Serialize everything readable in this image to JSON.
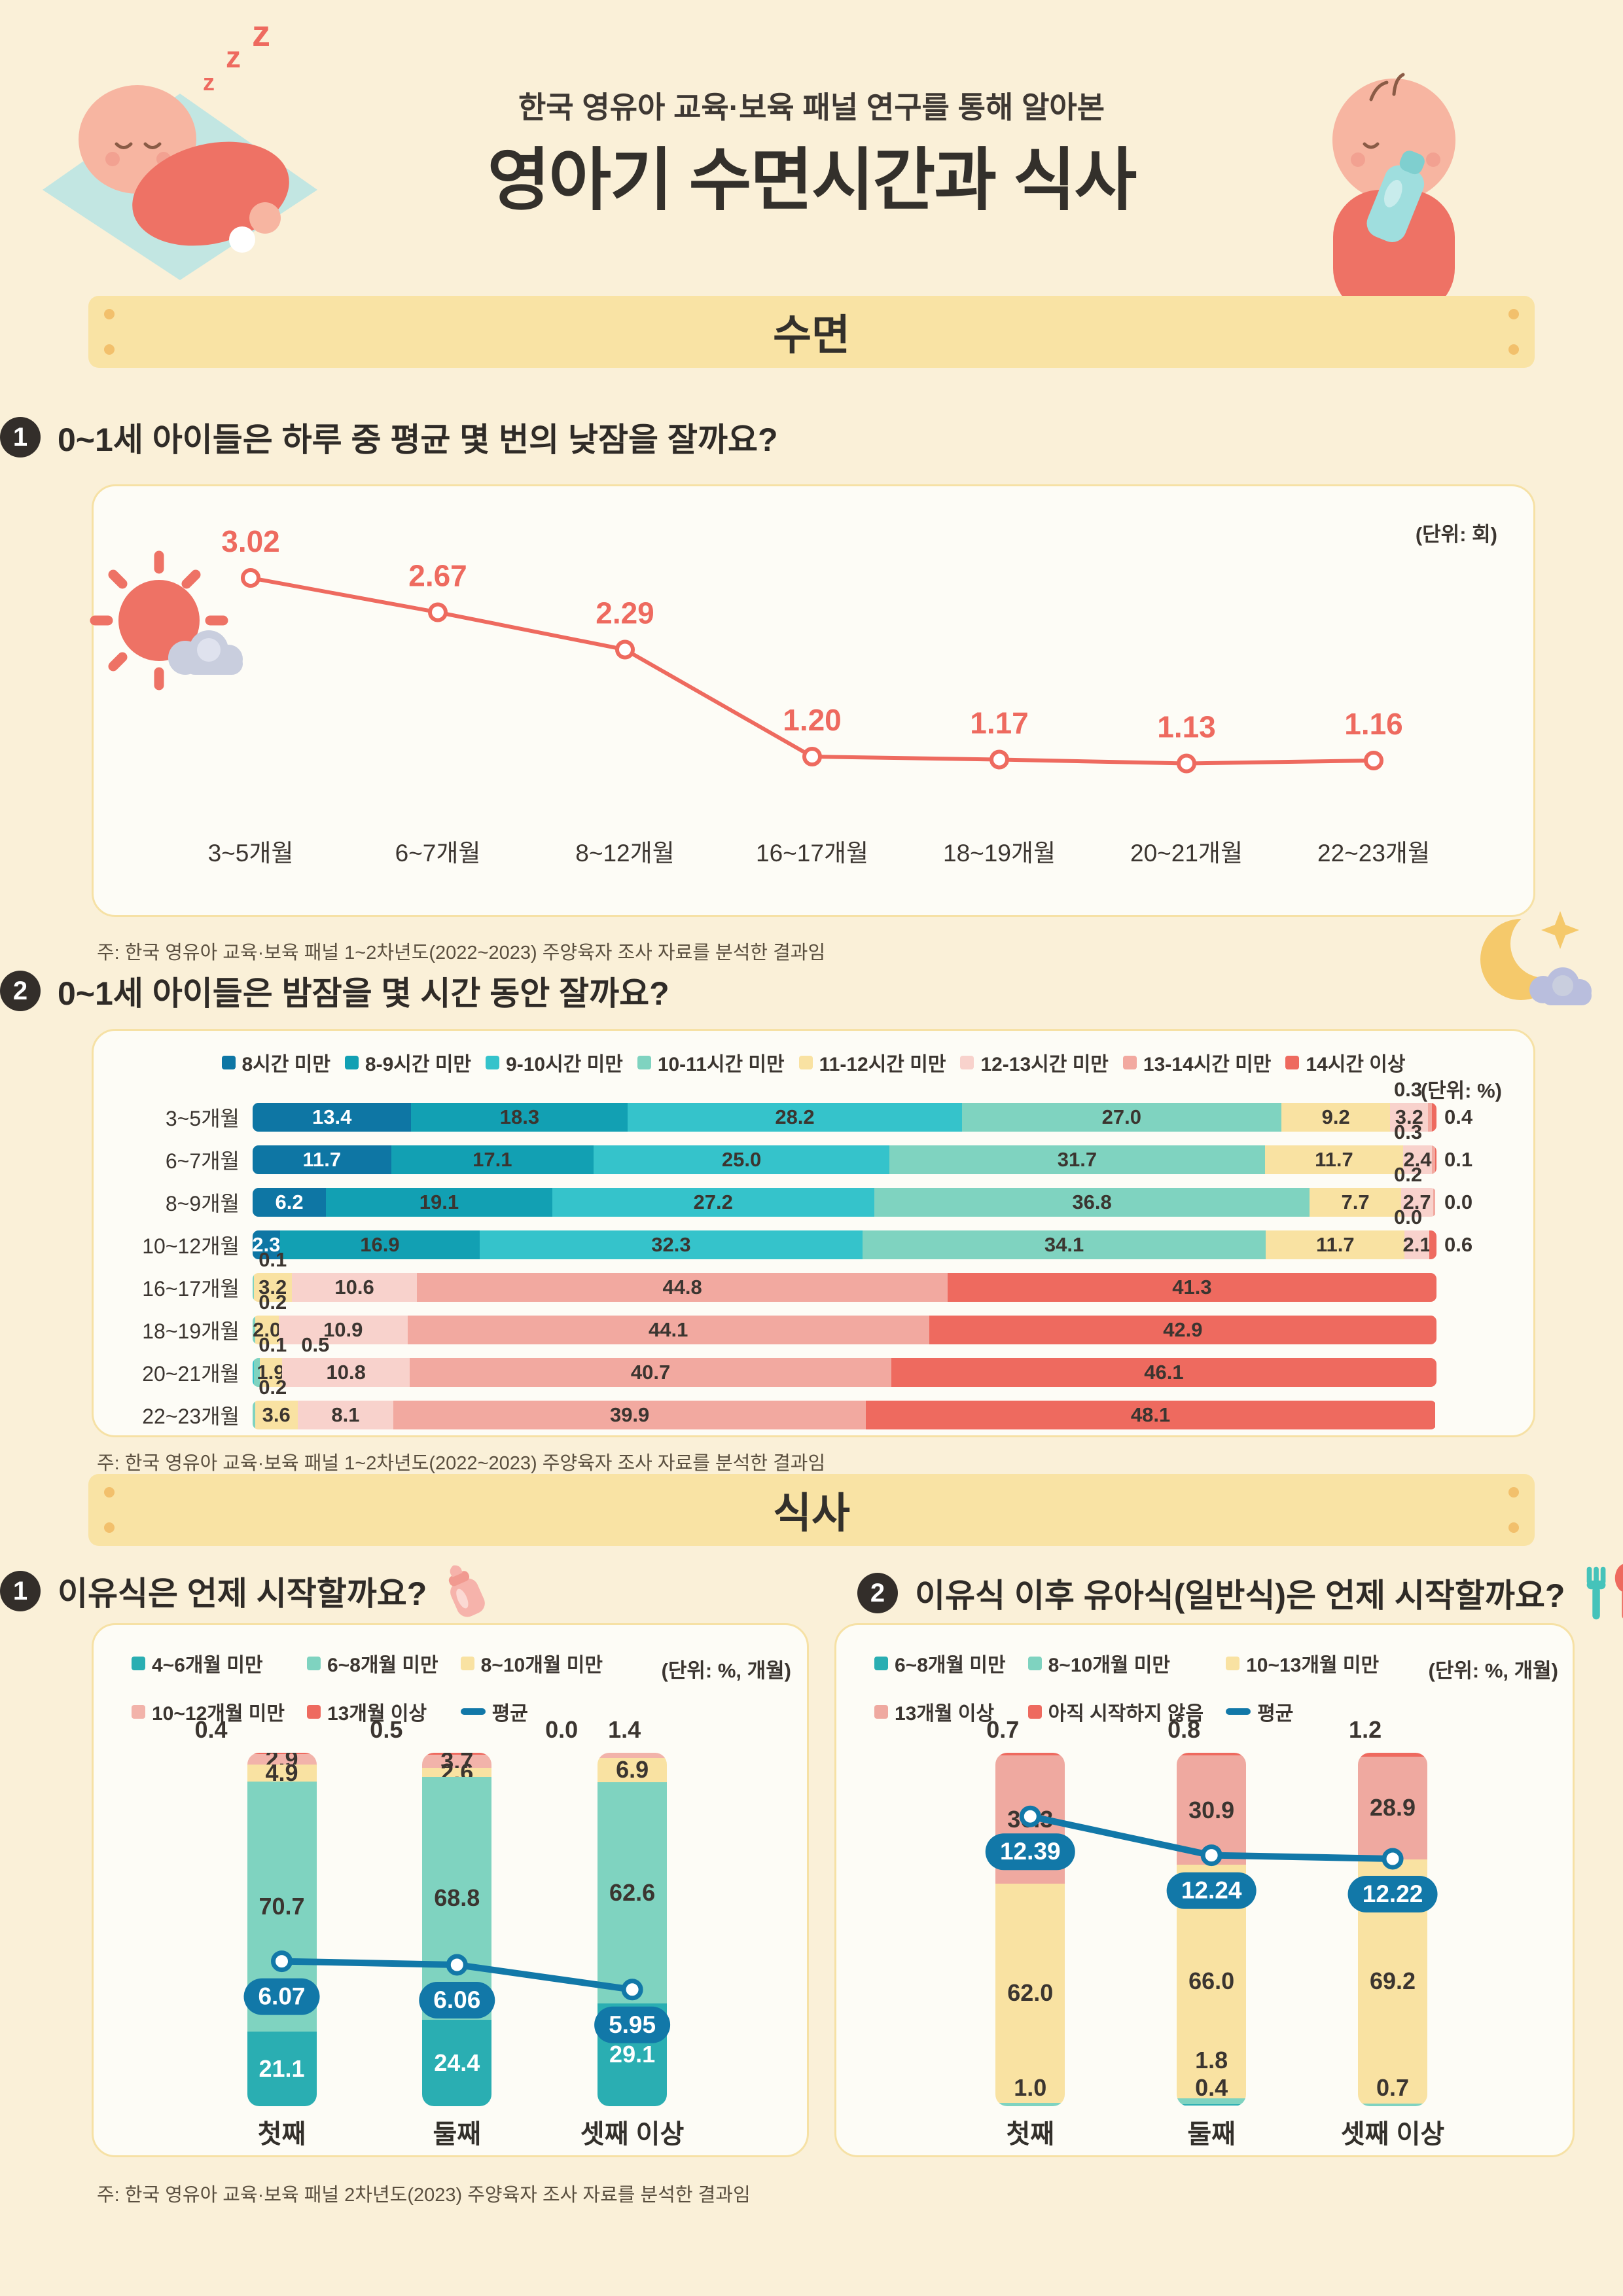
{
  "page": {
    "subtitle": "한국 영유아 교육·보육 패널 연구를 통해 알아본",
    "title": "영아기 수면시간과 식사",
    "section_sleep": "수면",
    "section_meal": "식사",
    "note_sleep": "주: 한국 영유아 교육·보육 패널 1~2차년도(2022~2023) 주양육자 조사 자료를 분석한 결과임",
    "note_meal": "주: 한국 영유아 교육·보육 패널 2차년도(2023) 주양육자 조사 자료를 분석한 결과임"
  },
  "colors": {
    "background": "#faf0d8",
    "band": "#f9e3a4",
    "band_dot": "#f2c06c",
    "panel_bg": "#fdfcf6",
    "panel_border": "#f6e1a5",
    "text_dark": "#33302b",
    "accent_coral": "#ee6a5f",
    "average_blue": "#1278a8"
  },
  "chart_data": [
    {
      "id": "nap-count",
      "type": "line",
      "question_no": "1",
      "title": "0~1세 아이들은 하루 중 평균 몇 번의 낮잠을 잘까요?",
      "unit": "(단위: 회)",
      "categories": [
        "3~5개월",
        "6~7개월",
        "8~12개월",
        "16~17개월",
        "18~19개월",
        "20~21개월",
        "22~23개월"
      ],
      "values": [
        3.02,
        2.67,
        2.29,
        1.2,
        1.17,
        1.13,
        1.16
      ],
      "ylim": [
        1.0,
        3.2
      ],
      "line_color": "#ee6a5f",
      "grid": false
    },
    {
      "id": "night-sleep-hours",
      "type": "bar",
      "subtype": "horizontal-stacked-100pct",
      "question_no": "2",
      "title": "0~1세 아이들은 밤잠을 몇 시간 동안 잘까요?",
      "unit": "(단위: %)",
      "legend": [
        "8시간 미만",
        "8-9시간 미만",
        "9-10시간 미만",
        "10-11시간 미만",
        "11-12시간 미만",
        "12-13시간 미만",
        "13-14시간 미만",
        "14시간 이상"
      ],
      "palette": [
        "#0e76a4",
        "#12a0b3",
        "#35c3cb",
        "#7fd3c0",
        "#f9e2a2",
        "#f8d2cc",
        "#f2a9a0",
        "#ee6a5f"
      ],
      "rows": [
        {
          "label": "3~5개월",
          "values": [
            13.4,
            18.3,
            28.2,
            27.0,
            9.2,
            3.2,
            0.3,
            0.4
          ],
          "above_idx": [
            6
          ],
          "right_idx": 7
        },
        {
          "label": "6~7개월",
          "values": [
            11.7,
            17.1,
            25.0,
            31.7,
            11.7,
            2.4,
            0.3,
            0.1
          ],
          "above_idx": [
            6
          ],
          "right_idx": 7
        },
        {
          "label": "8~9개월",
          "values": [
            6.2,
            19.1,
            27.2,
            36.8,
            7.7,
            2.7,
            0.2,
            0.0
          ],
          "above_idx": [
            6
          ],
          "right_idx": 7
        },
        {
          "label": "10~12개월",
          "values": [
            2.3,
            16.9,
            32.3,
            34.1,
            11.7,
            2.1,
            0.0,
            0.6
          ],
          "above_idx": [
            6
          ],
          "right_idx": 7
        },
        {
          "label": "16~17개월",
          "values": [
            0,
            0,
            0,
            0.1,
            3.2,
            10.6,
            44.8,
            41.3
          ],
          "above_idx": [
            3
          ],
          "right_idx": null
        },
        {
          "label": "18~19개월",
          "values": [
            0,
            0,
            0,
            0.2,
            2.0,
            10.9,
            44.1,
            42.9
          ],
          "above_idx": [
            3
          ],
          "right_idx": null
        },
        {
          "label": "20~21개월",
          "values": [
            0,
            0,
            0.1,
            0.5,
            1.9,
            10.8,
            40.7,
            46.1
          ],
          "above_idx": [
            2,
            3
          ],
          "right_idx": null
        },
        {
          "label": "22~23개월",
          "values": [
            0,
            0,
            0,
            0.2,
            3.6,
            8.1,
            39.9,
            48.1
          ],
          "above_idx": [
            3
          ],
          "right_idx": null
        }
      ]
    },
    {
      "id": "weaning-food-start",
      "type": "bar",
      "subtype": "vertical-stacked-100pct-with-average-line",
      "question_no": "1",
      "title": "이유식은 언제 시작할까요?",
      "unit": "(단위: %, 개월)",
      "legend": [
        "4~6개월 미만",
        "6~8개월 미만",
        "8~10개월 미만",
        "10~12개월 미만",
        "13개월 이상",
        "평균"
      ],
      "palette": [
        "#2aaeb2",
        "#7fd3c0",
        "#f9e2a2",
        "#f2b3aa",
        "#ee6a5f"
      ],
      "average_color": "#1278a8",
      "columns": [
        {
          "label": "첫째",
          "average": 6.07,
          "avg_y_pct": 59,
          "segments": [
            {
              "value": 0.4,
              "color": 4,
              "label": "out"
            },
            {
              "value": 2.9,
              "color": 3,
              "label": "in"
            },
            {
              "value": 4.9,
              "color": 2,
              "label": "in"
            },
            {
              "value": 70.7,
              "color": 1,
              "label": "in"
            },
            {
              "value": 21.1,
              "color": 0,
              "label": "in-white"
            }
          ]
        },
        {
          "label": "둘째",
          "average": 6.06,
          "avg_y_pct": 60,
          "segments": [
            {
              "value": 0.5,
              "color": 4,
              "label": "out"
            },
            {
              "value": 3.7,
              "color": 3,
              "label": "in"
            },
            {
              "value": 2.6,
              "color": 2,
              "label": "in"
            },
            {
              "value": 68.8,
              "color": 1,
              "label": "in"
            },
            {
              "value": 24.4,
              "color": 0,
              "label": "in-white"
            }
          ]
        },
        {
          "label": "셋째 이상",
          "average": 5.95,
          "avg_y_pct": 67,
          "segments": [
            {
              "value": 0.0,
              "color": 4,
              "label": "out"
            },
            {
              "value": 1.4,
              "color": 3,
              "label": "out"
            },
            {
              "value": 6.9,
              "color": 2,
              "label": "in"
            },
            {
              "value": 62.6,
              "color": 1,
              "label": "in"
            },
            {
              "value": 29.1,
              "color": 0,
              "label": "in-white"
            }
          ]
        }
      ]
    },
    {
      "id": "solid-food-start",
      "type": "bar",
      "subtype": "vertical-stacked-100pct-with-average-line",
      "question_no": "2",
      "title": "이유식 이후 유아식(일반식)은 언제 시작할까요?",
      "unit": "(단위: %, 개월)",
      "legend": [
        "6~8개월 미만",
        "8~10개월 미만",
        "10~13개월 미만",
        "13개월 이상",
        "아직 시작하지 않음",
        "평균"
      ],
      "palette": [
        "#2aaeb2",
        "#7fd3c0",
        "#f9e2a2",
        "#efa9a0",
        "#ee6a5f"
      ],
      "average_color": "#1278a8",
      "columns": [
        {
          "label": "첫째",
          "average": 12.39,
          "avg_y_pct": 18,
          "segments": [
            {
              "value": 0.7,
              "color": 4,
              "label": "out"
            },
            {
              "value": 36.3,
              "color": 3,
              "label": "in"
            },
            {
              "value": 62.0,
              "color": 2,
              "label": "in"
            },
            {
              "value": 1.0,
              "color": 1,
              "label": "bot"
            }
          ]
        },
        {
          "label": "둘째",
          "average": 12.24,
          "avg_y_pct": 29,
          "segments": [
            {
              "value": 0.8,
              "color": 4,
              "label": "out"
            },
            {
              "value": 30.9,
              "color": 3,
              "label": "in"
            },
            {
              "value": 66.0,
              "color": 2,
              "label": "in"
            },
            {
              "value": 1.8,
              "color": 1,
              "label": "bot"
            },
            {
              "value": 0.4,
              "color": 0,
              "label": "bot"
            }
          ]
        },
        {
          "label": "셋째 이상",
          "average": 12.22,
          "avg_y_pct": 30,
          "segments": [
            {
              "value": 1.2,
              "color": 4,
              "label": "out"
            },
            {
              "value": 28.9,
              "color": 3,
              "label": "in"
            },
            {
              "value": 69.2,
              "color": 2,
              "label": "in"
            },
            {
              "value": 0.7,
              "color": 1,
              "label": "bot"
            }
          ]
        }
      ]
    }
  ]
}
